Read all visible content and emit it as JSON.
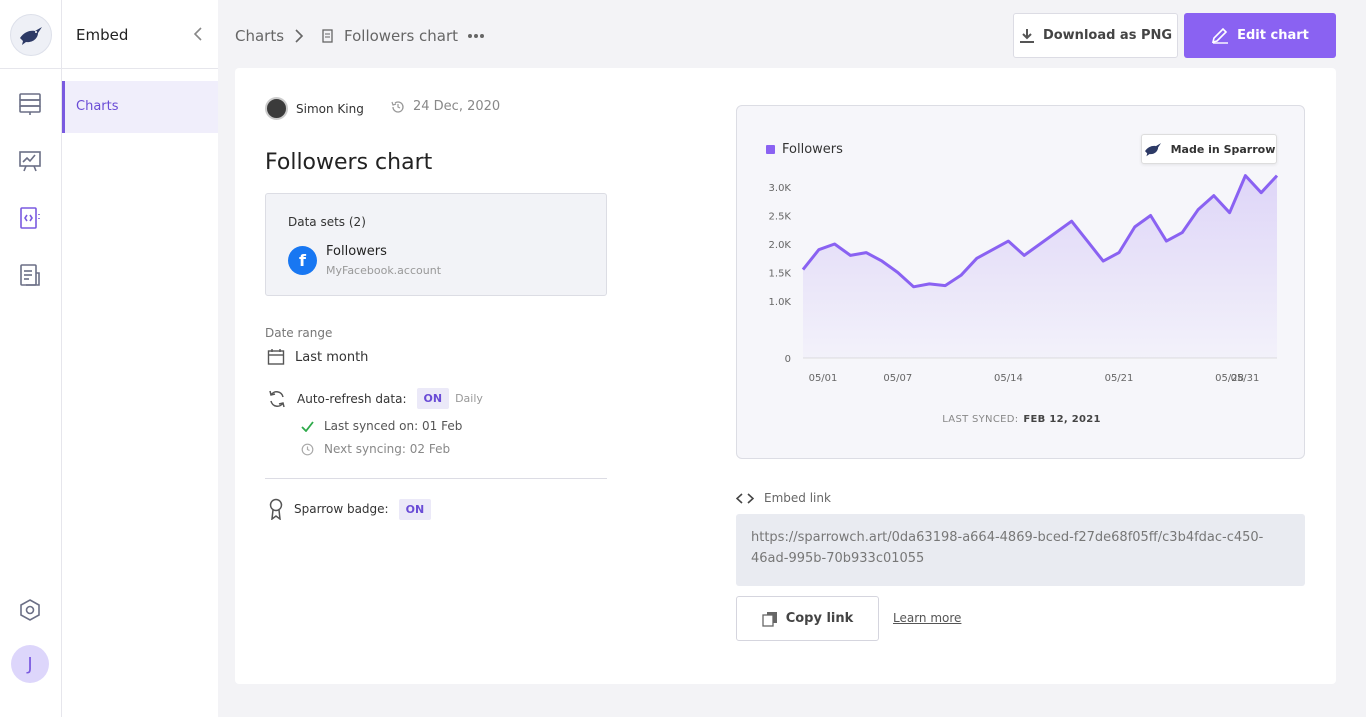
{
  "sidebar": {
    "title": "Embed",
    "items": [
      {
        "label": "Charts"
      }
    ]
  },
  "rail": {
    "icons": [
      "dashboard-icon",
      "presentation-icon",
      "embed-icon",
      "report-icon",
      "settings-icon"
    ],
    "avatar_initial": "J"
  },
  "breadcrumb": {
    "root": "Charts",
    "current": "Followers chart"
  },
  "toolbar": {
    "download_label": "Download as PNG",
    "edit_label": "Edit chart"
  },
  "chart_meta": {
    "author": "Simon King",
    "date": "24 Dec, 2020",
    "title": "Followers chart"
  },
  "datasets": {
    "heading": "Data sets (2)",
    "items": [
      {
        "name": "Followers",
        "account": "MyFacebook.account"
      }
    ]
  },
  "settings": {
    "date_range_label": "Date range",
    "date_range_value": "Last month",
    "auto_refresh_label": "Auto-refresh data:",
    "auto_refresh_state": "ON",
    "auto_refresh_freq": "Daily",
    "last_synced": "Last synced on: 01 Feb",
    "next_syncing": "Next syncing: 02 Feb",
    "badge_label": "Sparrow badge:",
    "badge_state": "ON"
  },
  "chart_panel": {
    "made_in": "Made in Sparrow",
    "last_synced_label": "LAST SYNCED:",
    "last_synced_value": "FEB 12, 2021"
  },
  "chart_data": {
    "type": "area",
    "series": [
      {
        "name": "Followers",
        "values": [
          1550,
          1900,
          2000,
          1800,
          1850,
          1700,
          1500,
          1250,
          1300,
          1270,
          1450,
          1750,
          1900,
          2050,
          1800,
          2000,
          2200,
          2400,
          2050,
          1700,
          1850,
          2300,
          2500,
          2050,
          2200,
          2600,
          2850,
          2550,
          3200,
          2900,
          3200
        ]
      }
    ],
    "x_ticks": [
      "05/01",
      "05/07",
      "05/14",
      "05/21",
      "05/28",
      "05/31"
    ],
    "y_ticks": [
      "0",
      "1.0K",
      "1.5K",
      "2.0K",
      "2.5K",
      "3.0K"
    ],
    "color": "#8a62f2"
  },
  "embed": {
    "label": "Embed link",
    "url": "https://sparrowch.art/0da63198-a664-4869-bced-f27de68f05ff/c3b4fdac-c450-46ad-995b-70b933c01055",
    "copy_label": "Copy link",
    "learn_more": "Learn more"
  }
}
